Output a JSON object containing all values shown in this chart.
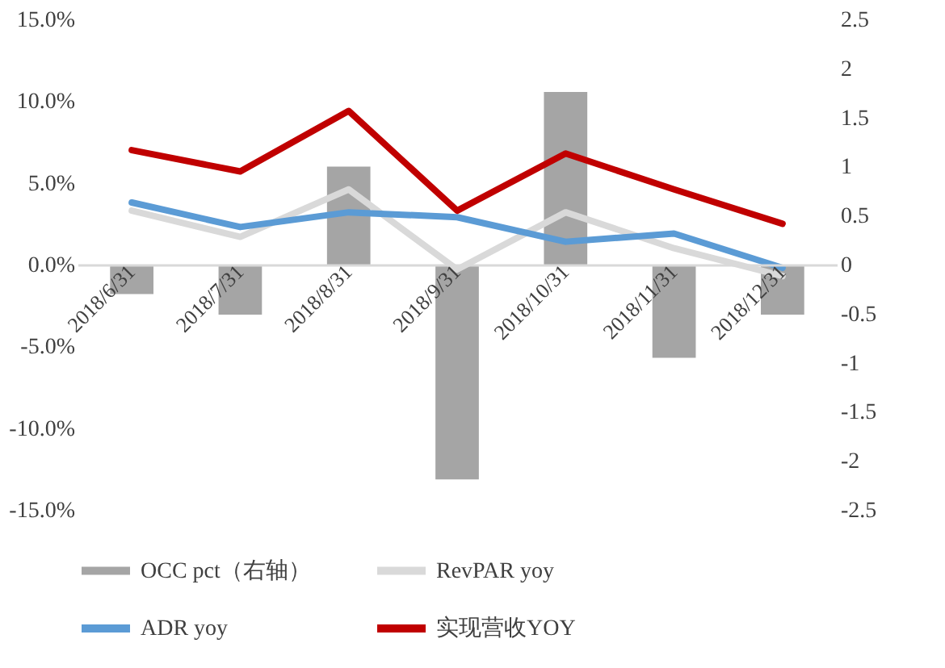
{
  "chart_data": {
    "type": "line",
    "categories": [
      "2018/6/31",
      "2018/7/31",
      "2018/8/31",
      "2018/9/31",
      "2018/10/31",
      "2018/11/31",
      "2018/12/31"
    ],
    "series": [
      {
        "name": "OCC pct（右轴）",
        "type": "bar",
        "axis": "y2",
        "color": "#a5a5a5",
        "values": [
          -0.3,
          -0.51,
          1.0,
          -2.19,
          1.76,
          -0.95,
          -0.51
        ]
      },
      {
        "name": "RevPAR yoy",
        "color": "#d9d9d9",
        "values": [
          3.3,
          1.7,
          4.6,
          -0.3,
          3.2,
          1.0,
          -0.7
        ]
      },
      {
        "name": "ADR yoy",
        "color": "#5b9bd5",
        "values": [
          3.8,
          2.3,
          3.2,
          2.9,
          1.4,
          1.9,
          -0.2
        ]
      },
      {
        "name": "实现营收YOY",
        "color": "#c00000",
        "values": [
          7.0,
          5.7,
          9.4,
          3.3,
          6.8,
          4.6,
          2.5
        ]
      }
    ],
    "ylim": [
      -15,
      15
    ],
    "yticks": [
      {
        "value": -15,
        "label": "-15.0%"
      },
      {
        "value": -10,
        "label": "-10.0%"
      },
      {
        "value": -5,
        "label": "-5.0%"
      },
      {
        "value": 0,
        "label": "0.0%"
      },
      {
        "value": 5,
        "label": "5.0%"
      },
      {
        "value": 10,
        "label": "10.0%"
      },
      {
        "value": 15,
        "label": "15.0%"
      }
    ],
    "y2lim": [
      -2.5,
      2.5
    ],
    "y2ticks": [
      -2.5,
      -2,
      -1.5,
      -1,
      -0.5,
      0,
      0.5,
      1,
      1.5,
      2,
      2.5
    ],
    "grid": false,
    "legend": "bottom",
    "line_style": "solid",
    "marker": "none"
  }
}
